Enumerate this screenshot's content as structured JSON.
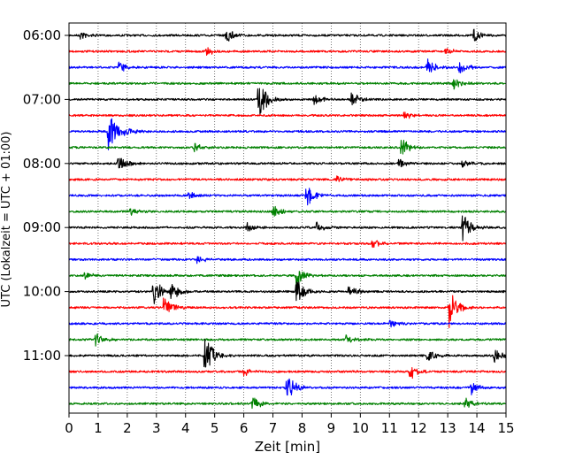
{
  "chart_data": {
    "type": "line",
    "title": "",
    "xlabel": "Zeit  [min]",
    "ylabel": "UTC (Lokalzeit = UTC + 01:00)",
    "xlim": [
      0,
      15
    ],
    "x_ticks": [
      "0",
      "1",
      "2",
      "3",
      "4",
      "5",
      "6",
      "7",
      "8",
      "9",
      "10",
      "11",
      "12",
      "13",
      "14",
      "15"
    ],
    "y_tick_labels": [
      "06:00",
      "07:00",
      "08:00",
      "09:00",
      "10:00",
      "11:00"
    ],
    "y_tick_rows": [
      0,
      4,
      8,
      12,
      16,
      20
    ],
    "grid": "vertical dotted lines at each minute",
    "trace_minutes": 15,
    "trace_colors": [
      "#000000",
      "#ff0000",
      "#0000ff",
      "#008000"
    ],
    "traces": [
      {
        "start": "06:00",
        "events": [
          {
            "t": 5.4,
            "amp": 0.35
          },
          {
            "t": 13.9,
            "amp": 0.3
          },
          {
            "t": 0.4,
            "amp": 0.2
          }
        ]
      },
      {
        "start": "06:15",
        "events": [
          {
            "t": 4.7,
            "amp": 0.25
          },
          {
            "t": 12.9,
            "amp": 0.2
          }
        ]
      },
      {
        "start": "06:30",
        "events": [
          {
            "t": 12.3,
            "amp": 0.4
          },
          {
            "t": 13.4,
            "amp": 0.35
          },
          {
            "t": 1.7,
            "amp": 0.25
          }
        ]
      },
      {
        "start": "06:45",
        "events": [
          {
            "t": 13.2,
            "amp": 0.3
          }
        ]
      },
      {
        "start": "07:00",
        "events": [
          {
            "t": 6.5,
            "amp": 1.0
          },
          {
            "t": 9.7,
            "amp": 0.35
          },
          {
            "t": 8.4,
            "amp": 0.3
          }
        ]
      },
      {
        "start": "07:15",
        "events": [
          {
            "t": 11.5,
            "amp": 0.2
          }
        ]
      },
      {
        "start": "07:30",
        "events": [
          {
            "t": 1.35,
            "amp": 0.9
          },
          {
            "t": 1.9,
            "amp": 0.25
          }
        ]
      },
      {
        "start": "07:45",
        "events": [
          {
            "t": 11.4,
            "amp": 0.45
          },
          {
            "t": 4.3,
            "amp": 0.2
          }
        ]
      },
      {
        "start": "08:00",
        "events": [
          {
            "t": 1.7,
            "amp": 0.4
          },
          {
            "t": 11.3,
            "amp": 0.3
          },
          {
            "t": 13.5,
            "amp": 0.2
          }
        ]
      },
      {
        "start": "08:15",
        "events": [
          {
            "t": 9.2,
            "amp": 0.2
          }
        ]
      },
      {
        "start": "08:30",
        "events": [
          {
            "t": 8.15,
            "amp": 0.55
          },
          {
            "t": 4.1,
            "amp": 0.2
          }
        ]
      },
      {
        "start": "08:45",
        "events": [
          {
            "t": 7.0,
            "amp": 0.3
          },
          {
            "t": 2.1,
            "amp": 0.2
          }
        ]
      },
      {
        "start": "09:00",
        "events": [
          {
            "t": 13.5,
            "amp": 0.7
          },
          {
            "t": 8.5,
            "amp": 0.3
          },
          {
            "t": 6.1,
            "amp": 0.2
          }
        ]
      },
      {
        "start": "09:15",
        "events": [
          {
            "t": 10.4,
            "amp": 0.2
          }
        ]
      },
      {
        "start": "09:30",
        "events": [
          {
            "t": 4.4,
            "amp": 0.2
          }
        ]
      },
      {
        "start": "09:45",
        "events": [
          {
            "t": 7.8,
            "amp": 0.45
          },
          {
            "t": 0.5,
            "amp": 0.2
          }
        ]
      },
      {
        "start": "10:00",
        "events": [
          {
            "t": 2.9,
            "amp": 0.75
          },
          {
            "t": 7.8,
            "amp": 0.6
          },
          {
            "t": 3.5,
            "amp": 0.4
          },
          {
            "t": 9.6,
            "amp": 0.35
          }
        ]
      },
      {
        "start": "10:15",
        "events": [
          {
            "t": 13.05,
            "amp": 0.95
          },
          {
            "t": 3.25,
            "amp": 0.5
          }
        ]
      },
      {
        "start": "10:30",
        "events": [
          {
            "t": 11.0,
            "amp": 0.2
          }
        ]
      },
      {
        "start": "10:45",
        "events": [
          {
            "t": 0.9,
            "amp": 0.3
          },
          {
            "t": 9.5,
            "amp": 0.2
          }
        ]
      },
      {
        "start": "11:00",
        "events": [
          {
            "t": 4.65,
            "amp": 1.0
          },
          {
            "t": 14.6,
            "amp": 0.35
          },
          {
            "t": 12.3,
            "amp": 0.3
          }
        ]
      },
      {
        "start": "11:15",
        "events": [
          {
            "t": 11.7,
            "amp": 0.4
          },
          {
            "t": 6.0,
            "amp": 0.2
          }
        ]
      },
      {
        "start": "11:30",
        "events": [
          {
            "t": 7.45,
            "amp": 0.7
          },
          {
            "t": 13.8,
            "amp": 0.3
          }
        ]
      },
      {
        "start": "11:45",
        "events": [
          {
            "t": 6.3,
            "amp": 0.35
          },
          {
            "t": 13.6,
            "amp": 0.25
          }
        ]
      }
    ]
  }
}
